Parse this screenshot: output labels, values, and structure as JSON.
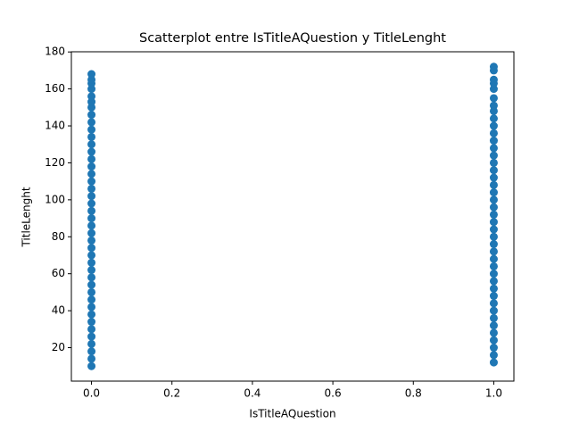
{
  "chart_data": {
    "type": "scatter",
    "title": "Scatterplot entre IsTitleAQuestion y TitleLenght",
    "x_label": "IsTitleAQuestion",
    "y_label": "TitleLenght",
    "series": [
      {
        "color": "#1f77b4",
        "x": [
          0,
          0,
          0,
          0,
          0,
          0,
          0,
          0,
          0,
          0,
          0,
          0,
          0,
          0,
          0,
          0,
          0,
          0,
          0,
          0,
          0,
          0,
          0,
          0,
          0,
          0,
          0,
          0,
          0,
          0,
          0,
          0,
          0,
          0,
          0,
          0,
          0,
          0,
          0,
          0,
          0,
          0,
          1,
          1,
          1,
          1,
          1,
          1,
          1,
          1,
          1,
          1,
          1,
          1,
          1,
          1,
          1,
          1,
          1,
          1,
          1,
          1,
          1,
          1,
          1,
          1,
          1,
          1,
          1,
          1,
          1,
          1,
          1,
          1,
          1,
          1,
          1,
          1,
          1,
          1,
          1,
          1,
          1,
          1
        ],
        "values": [
          10,
          14,
          18,
          22,
          26,
          30,
          34,
          38,
          42,
          46,
          50,
          54,
          58,
          62,
          66,
          70,
          74,
          78,
          82,
          86,
          90,
          94,
          98,
          102,
          106,
          110,
          114,
          118,
          122,
          126,
          130,
          134,
          138,
          142,
          146,
          150,
          153,
          156,
          160,
          163,
          165,
          168,
          12,
          16,
          20,
          24,
          28,
          32,
          36,
          40,
          44,
          48,
          52,
          56,
          60,
          64,
          68,
          72,
          76,
          80,
          84,
          88,
          92,
          96,
          100,
          104,
          108,
          112,
          116,
          120,
          124,
          128,
          132,
          136,
          140,
          144,
          148,
          151,
          155,
          160,
          163,
          165,
          170,
          172
        ]
      }
    ],
    "xlim": [
      -0.05,
      1.05
    ],
    "ylim": [
      1.9,
      180.1
    ],
    "xticks": [
      {
        "value": 0,
        "label": "0.0"
      },
      {
        "value": 0.2,
        "label": "0.2"
      },
      {
        "value": 0.4,
        "label": "0.4"
      },
      {
        "value": 0.6,
        "label": "0.6"
      },
      {
        "value": 0.8,
        "label": "0.8"
      },
      {
        "value": 1,
        "label": "1.0"
      }
    ],
    "yticks": [
      20,
      40,
      60,
      80,
      100,
      120,
      140,
      160,
      180
    ],
    "grid": false
  }
}
